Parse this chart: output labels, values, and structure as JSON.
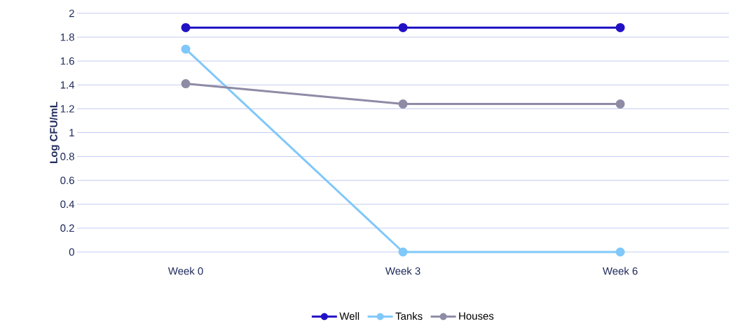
{
  "chart_data": {
    "type": "line",
    "ylabel": "Log CFU/mL",
    "categories": [
      "Week 0",
      "Week 3",
      "Week 6"
    ],
    "series": [
      {
        "name": "Well",
        "color": "#2212c4",
        "values": [
          1.88,
          1.88,
          1.88
        ]
      },
      {
        "name": "Tanks",
        "color": "#80c8fa",
        "values": [
          1.7,
          0,
          0
        ]
      },
      {
        "name": "Houses",
        "color": "#8e8ba6",
        "values": [
          1.41,
          1.24,
          1.24
        ]
      }
    ],
    "ylim": [
      0,
      2
    ],
    "yticks": [
      0,
      0.2,
      0.4,
      0.6,
      0.8,
      1,
      1.2,
      1.4,
      1.6,
      1.8,
      2
    ],
    "grid": "y",
    "legend": "bottom",
    "marker": "circle",
    "line_style": "solid"
  }
}
